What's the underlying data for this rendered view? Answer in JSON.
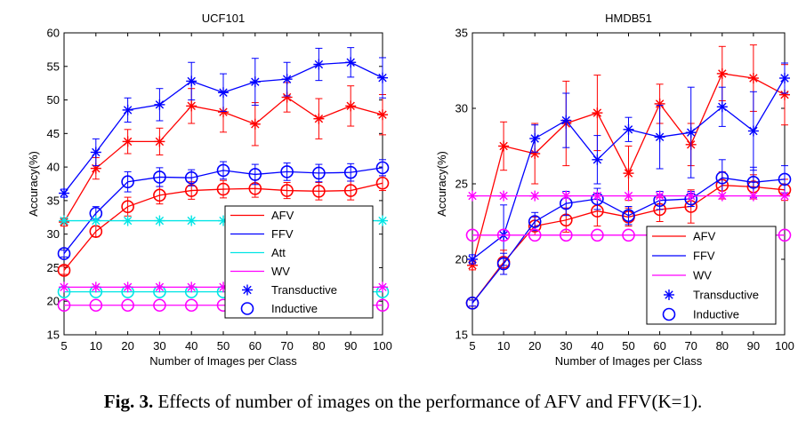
{
  "caption": {
    "label": "Fig. 3.",
    "text": " Effects of number of images on the performance of AFV and FFV(K=1)."
  },
  "chart_data": [
    {
      "type": "line",
      "title": "UCF101",
      "xlabel": "Number of Images per Class",
      "ylabel": "Accuracy(%)",
      "categories": [
        "5",
        "10",
        "20",
        "30",
        "40",
        "50",
        "60",
        "70",
        "80",
        "90",
        "100"
      ],
      "ylim": [
        15,
        60
      ],
      "yticks": [
        15,
        20,
        25,
        30,
        35,
        40,
        45,
        50,
        55,
        60
      ],
      "grid": false,
      "legend_position": "bottom-right",
      "legend": [
        {
          "label": "AFV",
          "kind": "line",
          "color": "#ff0000"
        },
        {
          "label": "FFV",
          "kind": "line",
          "color": "#0000ff"
        },
        {
          "label": "Att",
          "kind": "line",
          "color": "#00e5e5"
        },
        {
          "label": "WV",
          "kind": "line",
          "color": "#ff00ff"
        },
        {
          "label": "Transductive",
          "kind": "star",
          "color": "#0000ff"
        },
        {
          "label": "Inductive",
          "kind": "circle",
          "color": "#0000ff"
        }
      ],
      "series": [
        {
          "name": "AFV",
          "marker": "star",
          "color": "#ff0000",
          "values": [
            31.8,
            39.8,
            43.8,
            43.8,
            49.1,
            48.2,
            46.4,
            50.4,
            47.2,
            49.1,
            47.8
          ],
          "err": [
            0.6,
            1.6,
            1.8,
            2.0,
            2.6,
            3.0,
            3.2,
            2.2,
            3.0,
            3.0,
            3.0
          ]
        },
        {
          "name": "FFV",
          "marker": "star",
          "color": "#0000ff",
          "values": [
            36.1,
            42.2,
            48.5,
            49.3,
            52.8,
            51.1,
            52.7,
            53.1,
            55.3,
            55.6,
            53.3
          ],
          "err": [
            0.6,
            2.0,
            1.8,
            2.4,
            2.8,
            2.8,
            3.5,
            2.5,
            2.4,
            2.2,
            3.0
          ]
        },
        {
          "name": "AFV",
          "marker": "circle",
          "color": "#ff0000",
          "values": [
            24.6,
            30.4,
            34.1,
            35.8,
            36.5,
            36.7,
            36.8,
            36.5,
            36.4,
            36.5,
            37.6
          ],
          "err": [
            0.6,
            0.8,
            1.4,
            1.3,
            1.3,
            1.3,
            1.3,
            1.2,
            1.3,
            1.4,
            1.1
          ]
        },
        {
          "name": "FFV",
          "marker": "circle",
          "color": "#0000ff",
          "values": [
            27.1,
            33.1,
            37.8,
            38.5,
            38.4,
            39.5,
            38.9,
            39.3,
            39.1,
            39.2,
            39.9
          ],
          "err": [
            0.5,
            1.0,
            1.5,
            1.4,
            1.2,
            1.3,
            1.5,
            1.3,
            1.3,
            1.3,
            1.2
          ]
        },
        {
          "name": "Att",
          "marker": "star",
          "color": "#00e5e5",
          "values": [
            32.0,
            32.0,
            32.0,
            32.0,
            32.0,
            32.0,
            32.0,
            32.0,
            32.0,
            32.0,
            32.0
          ]
        },
        {
          "name": "Att",
          "marker": "circle",
          "color": "#00e5e5",
          "values": [
            21.4,
            21.4,
            21.4,
            21.4,
            21.4,
            21.4,
            21.4,
            21.4,
            21.4,
            21.4,
            21.4
          ]
        },
        {
          "name": "WV",
          "marker": "star",
          "color": "#ff00ff",
          "values": [
            22.1,
            22.1,
            22.1,
            22.1,
            22.1,
            22.1,
            22.1,
            22.1,
            22.1,
            22.1,
            22.1
          ]
        },
        {
          "name": "WV",
          "marker": "circle",
          "color": "#ff00ff",
          "values": [
            19.4,
            19.4,
            19.4,
            19.4,
            19.4,
            19.4,
            19.4,
            19.4,
            19.4,
            19.4,
            19.4
          ]
        }
      ]
    },
    {
      "type": "line",
      "title": "HMDB51",
      "xlabel": "Number of Images per Class",
      "ylabel": "Accuracy(%)",
      "categories": [
        "5",
        "10",
        "20",
        "30",
        "40",
        "50",
        "60",
        "70",
        "80",
        "90",
        "100"
      ],
      "ylim": [
        15,
        35
      ],
      "yticks": [
        15,
        20,
        25,
        30,
        35
      ],
      "grid": false,
      "legend_position": "bottom-right",
      "legend": [
        {
          "label": "AFV",
          "kind": "line",
          "color": "#ff0000"
        },
        {
          "label": "FFV",
          "kind": "line",
          "color": "#0000ff"
        },
        {
          "label": "WV",
          "kind": "line",
          "color": "#ff00ff"
        },
        {
          "label": "Transductive",
          "kind": "star",
          "color": "#0000ff"
        },
        {
          "label": "Inductive",
          "kind": "circle",
          "color": "#0000ff"
        }
      ],
      "series": [
        {
          "name": "AFV",
          "marker": "star",
          "color": "#ff0000",
          "values": [
            19.6,
            27.5,
            27.0,
            29.0,
            29.7,
            25.7,
            30.3,
            27.6,
            32.3,
            32.0,
            30.9
          ],
          "err": [
            0.3,
            1.6,
            2.0,
            2.8,
            2.5,
            1.8,
            1.3,
            1.4,
            1.8,
            2.2,
            2.0
          ]
        },
        {
          "name": "FFV",
          "marker": "star",
          "color": "#0000ff",
          "values": [
            20.0,
            21.6,
            28.0,
            29.2,
            26.6,
            28.6,
            28.1,
            28.4,
            30.1,
            28.5,
            32.0
          ],
          "err": [
            0.3,
            2.0,
            0.9,
            1.8,
            1.6,
            0.8,
            2.1,
            3.0,
            1.3,
            2.6,
            1.0
          ]
        },
        {
          "name": "AFV",
          "marker": "circle",
          "color": "#ff0000",
          "values": [
            17.1,
            19.8,
            22.2,
            22.6,
            23.2,
            22.8,
            23.3,
            23.5,
            24.9,
            24.8,
            24.6
          ],
          "err": [
            0.2,
            0.8,
            0.6,
            0.8,
            1.0,
            0.6,
            0.8,
            1.1,
            0.9,
            0.8,
            0.7
          ]
        },
        {
          "name": "FFV",
          "marker": "circle",
          "color": "#0000ff",
          "values": [
            17.1,
            19.7,
            22.5,
            23.7,
            24.0,
            22.9,
            23.9,
            24.0,
            25.4,
            25.1,
            25.3
          ],
          "err": [
            0.2,
            0.7,
            0.6,
            0.8,
            0.7,
            0.6,
            0.6,
            0.5,
            1.2,
            1.0,
            0.9
          ]
        },
        {
          "name": "WV",
          "marker": "star",
          "color": "#ff00ff",
          "values": [
            24.2,
            24.2,
            24.2,
            24.2,
            24.2,
            24.2,
            24.2,
            24.2,
            24.2,
            24.2,
            24.2
          ]
        },
        {
          "name": "WV",
          "marker": "circle",
          "color": "#ff00ff",
          "values": [
            21.6,
            21.6,
            21.6,
            21.6,
            21.6,
            21.6,
            21.6,
            21.6,
            21.6,
            21.6,
            21.6
          ]
        }
      ]
    }
  ]
}
